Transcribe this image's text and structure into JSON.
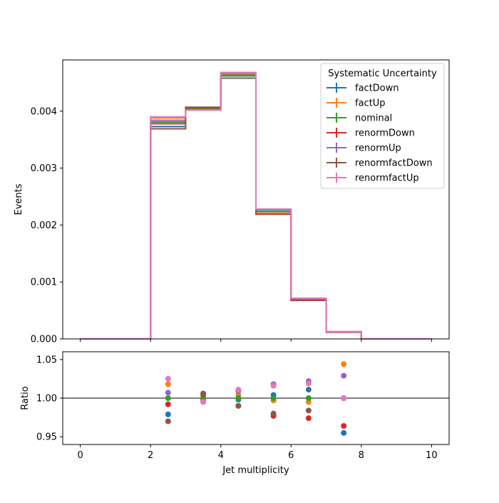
{
  "chart_data": [
    {
      "type": "step",
      "panel": "main",
      "ylabel": "Events",
      "xlim": [
        -0.5,
        10.5
      ],
      "ylim": [
        0,
        0.0049
      ],
      "yticks": [
        0.0,
        0.001,
        0.002,
        0.003,
        0.004
      ],
      "ytick_labels": [
        "0.000",
        "0.001",
        "0.002",
        "0.003",
        "0.004"
      ],
      "bin_edges": [
        0,
        1,
        2,
        3,
        4,
        5,
        6,
        7,
        8,
        9,
        10
      ],
      "legend_title": "Systematic Uncertainty",
      "legend_position": "top-right",
      "series": [
        {
          "name": "factDown",
          "color": "#1f77b4",
          "values": [
            0,
            0,
            0.00373,
            0.00403,
            0.00462,
            0.00227,
            0.000712,
            0.000117,
            0,
            0
          ]
        },
        {
          "name": "factUp",
          "color": "#ff7f0e",
          "values": [
            0,
            0,
            0.00388,
            0.00405,
            0.00465,
            0.00223,
            0.000691,
            0.000128,
            0,
            0
          ]
        },
        {
          "name": "nominal",
          "color": "#2ca02c",
          "values": [
            0,
            0,
            0.00381,
            0.00404,
            0.00463,
            0.00224,
            0.000695,
            0.000123,
            0,
            0
          ]
        },
        {
          "name": "renormDown",
          "color": "#d62728",
          "values": [
            0,
            0,
            0.00378,
            0.00406,
            0.00458,
            0.00219,
            0.000677,
            0.000118,
            0,
            0
          ]
        },
        {
          "name": "renormUp",
          "color": "#9467bd",
          "values": [
            0,
            0,
            0.00384,
            0.00402,
            0.00467,
            0.00228,
            0.00071,
            0.000127,
            0,
            0
          ]
        },
        {
          "name": "renormfactDown",
          "color": "#8c564b",
          "values": [
            0,
            0,
            0.00369,
            0.00407,
            0.00458,
            0.0022,
            0.000684,
            0.000123,
            0,
            0
          ]
        },
        {
          "name": "renormfactUp",
          "color": "#e377c2",
          "values": [
            0,
            0,
            0.0039,
            0.00402,
            0.00468,
            0.00228,
            0.000709,
            0.000123,
            0,
            0
          ]
        }
      ]
    },
    {
      "type": "scatter",
      "panel": "ratio",
      "xlabel": "Jet multiplicity",
      "ylabel": "Ratio",
      "xlim": [
        -0.5,
        10.5
      ],
      "ylim": [
        0.94,
        1.06
      ],
      "xticks": [
        0,
        2,
        4,
        6,
        8,
        10
      ],
      "xtick_labels": [
        "0",
        "2",
        "4",
        "6",
        "8",
        "10"
      ],
      "yticks": [
        0.95,
        1.0,
        1.05
      ],
      "ytick_labels": [
        "0.95",
        "1.00",
        "1.05"
      ],
      "reference_line": 1.0,
      "x": [
        2.5,
        3.5,
        4.5,
        5.5,
        6.5,
        7.5
      ],
      "series": [
        {
          "name": "factDown",
          "color": "#1f77b4",
          "values": [
            0.979,
            0.998,
            0.998,
            1.004,
            1.011,
            0.955
          ]
        },
        {
          "name": "factUp",
          "color": "#ff7f0e",
          "values": [
            1.018,
            1.002,
            1.004,
            0.997,
            0.995,
            1.044
          ]
        },
        {
          "name": "nominal",
          "color": "#2ca02c",
          "values": [
            1.0,
            1.0,
            1.0,
            1.0,
            1.0,
            1.0
          ]
        },
        {
          "name": "renormDown",
          "color": "#d62728",
          "values": [
            0.992,
            1.005,
            0.99,
            0.977,
            0.974,
            0.964
          ]
        },
        {
          "name": "renormUp",
          "color": "#9467bd",
          "values": [
            1.007,
            0.995,
            1.009,
            1.018,
            1.022,
            1.029
          ]
        },
        {
          "name": "renormfactDown",
          "color": "#8c564b",
          "values": [
            0.97,
            1.006,
            0.99,
            0.98,
            0.984,
            1.0
          ]
        },
        {
          "name": "renormfactUp",
          "color": "#e377c2",
          "values": [
            1.025,
            0.995,
            1.011,
            1.016,
            1.019,
            1.0
          ]
        }
      ]
    }
  ]
}
